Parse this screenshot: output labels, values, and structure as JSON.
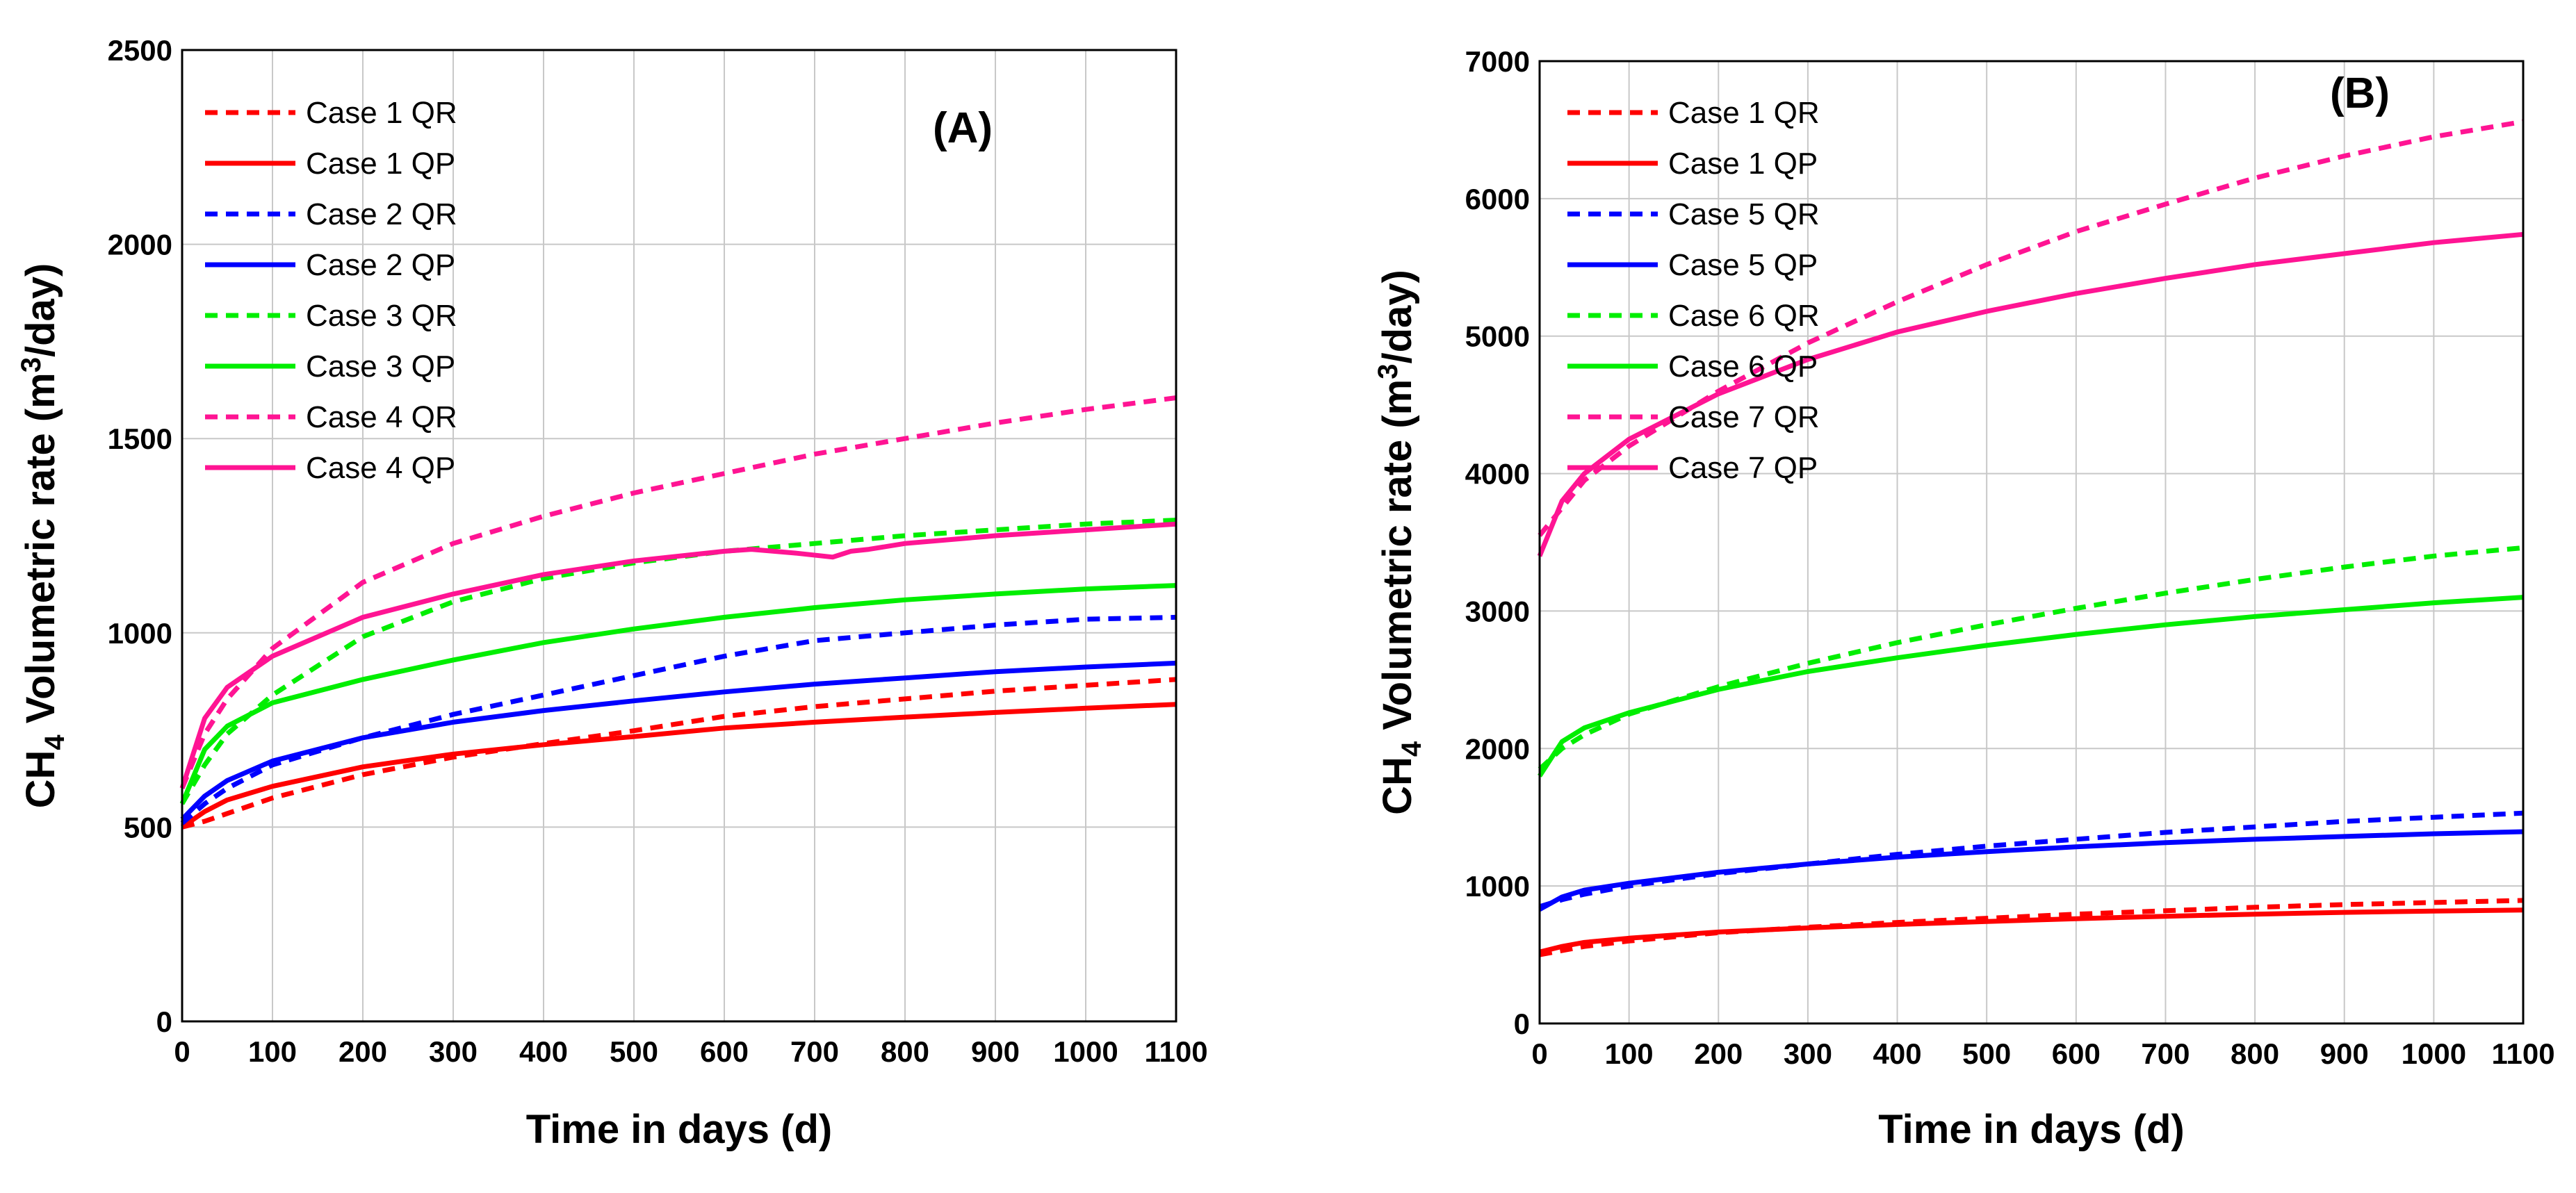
{
  "chart_data": [
    {
      "type": "line",
      "panel_label": "(A)",
      "xlabel": "Time in days (d)",
      "ylabel_main": "CH",
      "ylabel_sub": "4",
      "ylabel_mid": " Volumetric rate (m",
      "ylabel_sup": "3",
      "ylabel_end": "/day)",
      "xlim": [
        0,
        1100
      ],
      "ylim": [
        0,
        2500
      ],
      "xticks": [
        0,
        100,
        200,
        300,
        400,
        500,
        600,
        700,
        800,
        900,
        1000,
        1100
      ],
      "yticks": [
        0,
        500,
        1000,
        1500,
        2000,
        2500
      ],
      "grid": true,
      "legend_position": "top-left",
      "series": [
        {
          "name": "Case 1 QR",
          "color": "#ff0000",
          "dash": true,
          "points": [
            [
              0,
              500
            ],
            [
              25,
              515
            ],
            [
              50,
              535
            ],
            [
              100,
              575
            ],
            [
              200,
              635
            ],
            [
              300,
              680
            ],
            [
              400,
              715
            ],
            [
              500,
              748
            ],
            [
              600,
              785
            ],
            [
              700,
              810
            ],
            [
              800,
              830
            ],
            [
              900,
              850
            ],
            [
              1000,
              865
            ],
            [
              1100,
              880
            ]
          ]
        },
        {
          "name": "Case 1 QP",
          "color": "#ff0000",
          "dash": false,
          "points": [
            [
              0,
              500
            ],
            [
              25,
              540
            ],
            [
              50,
              570
            ],
            [
              100,
              605
            ],
            [
              200,
              655
            ],
            [
              300,
              688
            ],
            [
              400,
              712
            ],
            [
              500,
              733
            ],
            [
              600,
              755
            ],
            [
              700,
              770
            ],
            [
              800,
              783
            ],
            [
              900,
              795
            ],
            [
              1000,
              806
            ],
            [
              1100,
              816
            ]
          ]
        },
        {
          "name": "Case 2 QR",
          "color": "#0000ff",
          "dash": true,
          "points": [
            [
              0,
              510
            ],
            [
              25,
              560
            ],
            [
              50,
              600
            ],
            [
              100,
              660
            ],
            [
              200,
              730
            ],
            [
              300,
              790
            ],
            [
              400,
              840
            ],
            [
              500,
              890
            ],
            [
              600,
              940
            ],
            [
              700,
              980
            ],
            [
              800,
              1000
            ],
            [
              900,
              1020
            ],
            [
              1000,
              1035
            ],
            [
              1100,
              1040
            ]
          ]
        },
        {
          "name": "Case 2 QP",
          "color": "#0000ff",
          "dash": false,
          "points": [
            [
              0,
              520
            ],
            [
              25,
              580
            ],
            [
              50,
              620
            ],
            [
              100,
              670
            ],
            [
              200,
              730
            ],
            [
              300,
              770
            ],
            [
              400,
              800
            ],
            [
              500,
              825
            ],
            [
              600,
              848
            ],
            [
              700,
              868
            ],
            [
              800,
              884
            ],
            [
              900,
              900
            ],
            [
              1000,
              912
            ],
            [
              1100,
              922
            ]
          ]
        },
        {
          "name": "Case 3 QR",
          "color": "#00ee00",
          "dash": true,
          "points": [
            [
              0,
              560
            ],
            [
              25,
              660
            ],
            [
              50,
              740
            ],
            [
              100,
              840
            ],
            [
              200,
              990
            ],
            [
              300,
              1080
            ],
            [
              400,
              1140
            ],
            [
              500,
              1180
            ],
            [
              600,
              1210
            ],
            [
              700,
              1230
            ],
            [
              800,
              1250
            ],
            [
              900,
              1265
            ],
            [
              1000,
              1280
            ],
            [
              1100,
              1290
            ]
          ]
        },
        {
          "name": "Case 3 QP",
          "color": "#00ee00",
          "dash": false,
          "points": [
            [
              0,
              560
            ],
            [
              25,
              700
            ],
            [
              50,
              760
            ],
            [
              100,
              820
            ],
            [
              200,
              880
            ],
            [
              300,
              930
            ],
            [
              400,
              975
            ],
            [
              500,
              1010
            ],
            [
              600,
              1040
            ],
            [
              700,
              1065
            ],
            [
              800,
              1085
            ],
            [
              900,
              1100
            ],
            [
              1000,
              1113
            ],
            [
              1100,
              1122
            ]
          ]
        },
        {
          "name": "Case 4 QR",
          "color": "#ff1493",
          "dash": true,
          "points": [
            [
              0,
              600
            ],
            [
              25,
              740
            ],
            [
              50,
              830
            ],
            [
              100,
              960
            ],
            [
              200,
              1130
            ],
            [
              300,
              1230
            ],
            [
              400,
              1300
            ],
            [
              500,
              1360
            ],
            [
              600,
              1410
            ],
            [
              700,
              1460
            ],
            [
              800,
              1500
            ],
            [
              900,
              1540
            ],
            [
              1000,
              1575
            ],
            [
              1100,
              1605
            ]
          ]
        },
        {
          "name": "Case 4 QP",
          "color": "#ff1493",
          "dash": false,
          "points": [
            [
              0,
              600
            ],
            [
              25,
              780
            ],
            [
              50,
              860
            ],
            [
              100,
              940
            ],
            [
              200,
              1040
            ],
            [
              300,
              1100
            ],
            [
              400,
              1150
            ],
            [
              500,
              1185
            ],
            [
              600,
              1210
            ],
            [
              630,
              1215
            ],
            [
              680,
              1205
            ],
            [
              720,
              1195
            ],
            [
              740,
              1210
            ],
            [
              760,
              1215
            ],
            [
              800,
              1230
            ],
            [
              900,
              1250
            ],
            [
              1000,
              1265
            ],
            [
              1100,
              1280
            ]
          ]
        }
      ]
    },
    {
      "type": "line",
      "panel_label": "(B)",
      "xlabel": "Time in days (d)",
      "ylabel_main": "CH",
      "ylabel_sub": "4",
      "ylabel_mid": " Volumetric rate (m",
      "ylabel_sup": "3",
      "ylabel_end": "/day)",
      "xlim": [
        0,
        1100
      ],
      "ylim": [
        0,
        7000
      ],
      "xticks": [
        0,
        100,
        200,
        300,
        400,
        500,
        600,
        700,
        800,
        900,
        1000,
        1100
      ],
      "yticks": [
        0,
        1000,
        2000,
        3000,
        4000,
        5000,
        6000,
        7000
      ],
      "grid": true,
      "legend_position": "top-left",
      "series": [
        {
          "name": "Case 1 QR",
          "color": "#ff0000",
          "dash": true,
          "points": [
            [
              0,
              500
            ],
            [
              25,
              530
            ],
            [
              50,
              560
            ],
            [
              100,
              600
            ],
            [
              200,
              660
            ],
            [
              300,
              700
            ],
            [
              400,
              735
            ],
            [
              500,
              765
            ],
            [
              600,
              795
            ],
            [
              700,
              820
            ],
            [
              800,
              845
            ],
            [
              900,
              865
            ],
            [
              1000,
              880
            ],
            [
              1100,
              895
            ]
          ]
        },
        {
          "name": "Case 1 QP",
          "color": "#ff0000",
          "dash": false,
          "points": [
            [
              0,
              520
            ],
            [
              25,
              560
            ],
            [
              50,
              590
            ],
            [
              100,
              620
            ],
            [
              200,
              665
            ],
            [
              300,
              695
            ],
            [
              400,
              720
            ],
            [
              500,
              742
            ],
            [
              600,
              762
            ],
            [
              700,
              780
            ],
            [
              800,
              795
            ],
            [
              900,
              808
            ],
            [
              1000,
              818
            ],
            [
              1100,
              825
            ]
          ]
        },
        {
          "name": "Case 5 QR",
          "color": "#0000ff",
          "dash": true,
          "points": [
            [
              0,
              850
            ],
            [
              25,
              900
            ],
            [
              50,
              940
            ],
            [
              100,
              1000
            ],
            [
              200,
              1090
            ],
            [
              300,
              1160
            ],
            [
              400,
              1230
            ],
            [
              500,
              1290
            ],
            [
              600,
              1340
            ],
            [
              700,
              1390
            ],
            [
              800,
              1430
            ],
            [
              900,
              1470
            ],
            [
              1000,
              1500
            ],
            [
              1100,
              1530
            ]
          ]
        },
        {
          "name": "Case 5 QP",
          "color": "#0000ff",
          "dash": false,
          "points": [
            [
              0,
              830
            ],
            [
              25,
              920
            ],
            [
              50,
              970
            ],
            [
              100,
              1020
            ],
            [
              200,
              1100
            ],
            [
              300,
              1160
            ],
            [
              400,
              1210
            ],
            [
              500,
              1250
            ],
            [
              600,
              1285
            ],
            [
              700,
              1315
            ],
            [
              800,
              1340
            ],
            [
              900,
              1360
            ],
            [
              1000,
              1380
            ],
            [
              1100,
              1395
            ]
          ]
        },
        {
          "name": "Case 6 QR",
          "color": "#00ee00",
          "dash": true,
          "points": [
            [
              0,
              1850
            ],
            [
              25,
              2000
            ],
            [
              50,
              2100
            ],
            [
              100,
              2250
            ],
            [
              200,
              2450
            ],
            [
              300,
              2620
            ],
            [
              400,
              2770
            ],
            [
              500,
              2900
            ],
            [
              600,
              3020
            ],
            [
              700,
              3130
            ],
            [
              800,
              3230
            ],
            [
              900,
              3320
            ],
            [
              1000,
              3400
            ],
            [
              1100,
              3460
            ]
          ]
        },
        {
          "name": "Case 6 QP",
          "color": "#00ee00",
          "dash": false,
          "points": [
            [
              0,
              1800
            ],
            [
              25,
              2050
            ],
            [
              50,
              2150
            ],
            [
              100,
              2260
            ],
            [
              200,
              2430
            ],
            [
              300,
              2560
            ],
            [
              400,
              2660
            ],
            [
              500,
              2750
            ],
            [
              600,
              2830
            ],
            [
              700,
              2900
            ],
            [
              800,
              2960
            ],
            [
              900,
              3010
            ],
            [
              1000,
              3060
            ],
            [
              1100,
              3100
            ]
          ]
        },
        {
          "name": "Case 7 QR",
          "color": "#ff1493",
          "dash": true,
          "points": [
            [
              0,
              3550
            ],
            [
              25,
              3750
            ],
            [
              50,
              3950
            ],
            [
              100,
              4200
            ],
            [
              200,
              4600
            ],
            [
              300,
              4950
            ],
            [
              400,
              5250
            ],
            [
              500,
              5520
            ],
            [
              600,
              5760
            ],
            [
              700,
              5960
            ],
            [
              800,
              6150
            ],
            [
              900,
              6310
            ],
            [
              1000,
              6450
            ],
            [
              1100,
              6560
            ]
          ]
        },
        {
          "name": "Case 7 QP",
          "color": "#ff1493",
          "dash": false,
          "points": [
            [
              0,
              3400
            ],
            [
              25,
              3800
            ],
            [
              50,
              4000
            ],
            [
              100,
              4250
            ],
            [
              200,
              4580
            ],
            [
              300,
              4830
            ],
            [
              400,
              5030
            ],
            [
              500,
              5180
            ],
            [
              600,
              5310
            ],
            [
              700,
              5420
            ],
            [
              800,
              5520
            ],
            [
              900,
              5600
            ],
            [
              1000,
              5680
            ],
            [
              1100,
              5740
            ]
          ]
        }
      ]
    }
  ]
}
